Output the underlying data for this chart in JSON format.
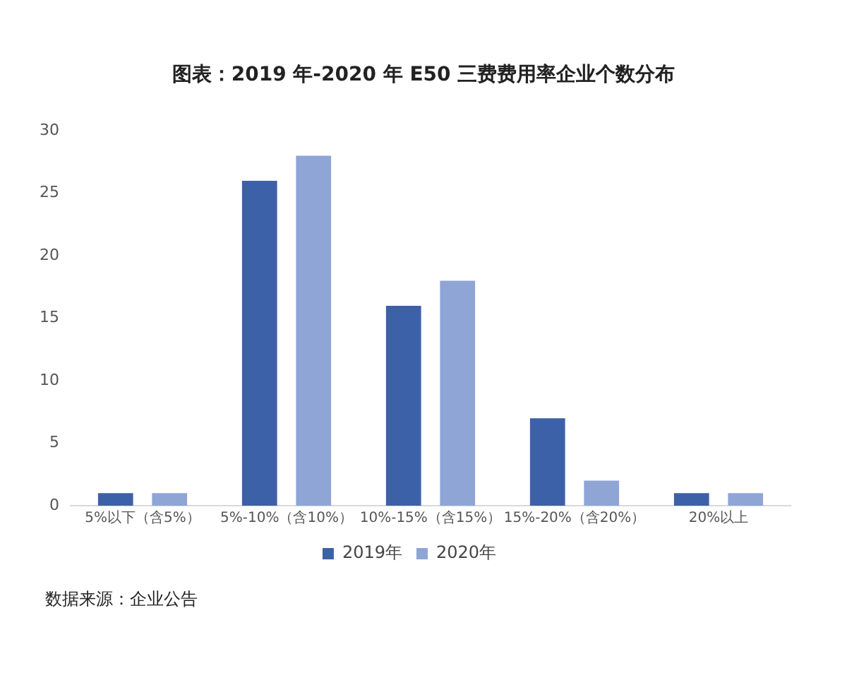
{
  "chart_data": {
    "type": "bar",
    "title": "图表：2019 年-2020 年 E50 三费费用率企业个数分布",
    "categories": [
      "5%以下（含5%）",
      "5%-10%（含10%）",
      "10%-15%（含15%）",
      "15%-20%（含20%）",
      "20%以上"
    ],
    "series": [
      {
        "name": "2019年",
        "color": "#3d61a8",
        "values": [
          1,
          26,
          16,
          7,
          1
        ]
      },
      {
        "name": "2020年",
        "color": "#8fa5d6",
        "values": [
          1,
          28,
          18,
          2,
          1
        ]
      }
    ],
    "ylim": [
      0,
      30
    ],
    "yticks": [
      0,
      5,
      10,
      15,
      20,
      25,
      30
    ],
    "grid": false,
    "legend": "bottom",
    "annotations": [
      "数据来源：企业公告"
    ]
  }
}
